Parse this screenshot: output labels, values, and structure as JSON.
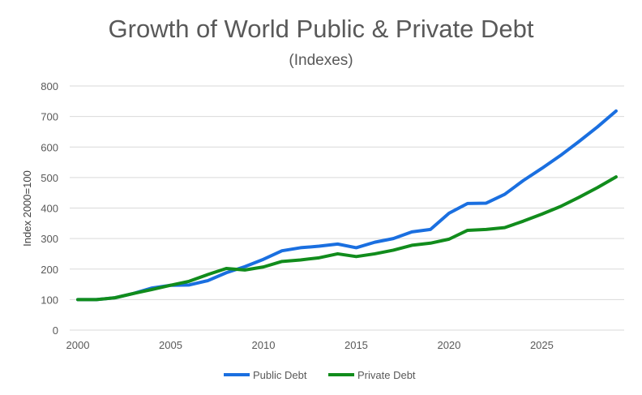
{
  "chart_data": {
    "type": "line",
    "title": "Growth of World Public & Private Debt",
    "subtitle": "(Indexes)",
    "xlabel": "",
    "ylabel": "Index 2000=100",
    "ylim": [
      0,
      800
    ],
    "yticks": [
      0,
      100,
      200,
      300,
      400,
      500,
      600,
      700,
      800
    ],
    "xlim": [
      2000,
      2029
    ],
    "xticks": [
      2000,
      2005,
      2010,
      2015,
      2020,
      2025
    ],
    "grid": "horizontal",
    "legend": "bottom",
    "x": [
      2000,
      2001,
      2002,
      2003,
      2004,
      2005,
      2006,
      2007,
      2008,
      2009,
      2010,
      2011,
      2012,
      2013,
      2014,
      2015,
      2016,
      2017,
      2018,
      2019,
      2020,
      2021,
      2022,
      2023,
      2024,
      2025,
      2026,
      2027,
      2028,
      2029
    ],
    "series": [
      {
        "name": "Public Debt",
        "color": "#1a6fe0",
        "values": [
          100,
          100,
          106,
          120,
          138,
          147,
          148,
          162,
          188,
          208,
          232,
          260,
          270,
          275,
          282,
          270,
          288,
          300,
          322,
          330,
          383,
          415,
          416,
          445,
          490,
          530,
          572,
          618,
          666,
          718
        ]
      },
      {
        "name": "Private Debt",
        "color": "#118c1c",
        "values": [
          100,
          100,
          106,
          120,
          133,
          147,
          160,
          182,
          202,
          197,
          207,
          225,
          230,
          237,
          250,
          241,
          250,
          262,
          278,
          285,
          298,
          327,
          330,
          336,
          357,
          380,
          405,
          435,
          467,
          502
        ]
      }
    ]
  }
}
